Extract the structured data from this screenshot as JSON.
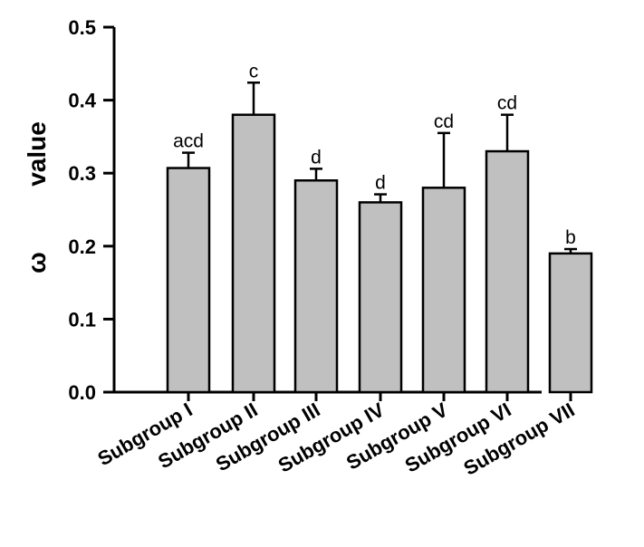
{
  "chart_data": {
    "type": "bar",
    "title": "",
    "xlabel": "",
    "ylabel": "ω value",
    "ylabel_parts": [
      "ω",
      "value"
    ],
    "categories": [
      "Subgroup I",
      "Subgroup II",
      "Subgroup III",
      "Subgroup IV",
      "Subgroup V",
      "Subgroup VI",
      "Subgroup VII"
    ],
    "values": [
      0.307,
      0.38,
      0.29,
      0.26,
      0.28,
      0.33,
      0.19
    ],
    "error_upper": [
      0.021,
      0.044,
      0.016,
      0.011,
      0.075,
      0.05,
      0.006
    ],
    "significance_labels": [
      "acd",
      "c",
      "d",
      "d",
      "cd",
      "cd",
      "b"
    ],
    "yticks": [
      "0.0",
      "0.1",
      "0.2",
      "0.3",
      "0.4",
      "0.5"
    ],
    "ylim": [
      0,
      0.5
    ],
    "grid": false,
    "bar_color": "#c0c0c0",
    "edge_color": "#000000"
  }
}
